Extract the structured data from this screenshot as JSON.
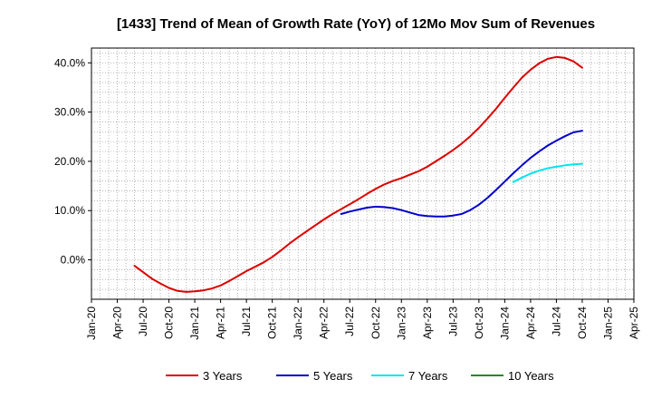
{
  "chart_data": {
    "type": "line",
    "title": "[1433]  Trend of Mean of Growth Rate (YoY) of 12Mo Mov Sum of Revenues",
    "xlabel": "",
    "ylabel": "",
    "x_ticks": [
      "Jan-20",
      "Apr-20",
      "Jul-20",
      "Oct-20",
      "Jan-21",
      "Apr-21",
      "Jul-21",
      "Oct-21",
      "Jan-22",
      "Apr-22",
      "Jul-22",
      "Oct-22",
      "Jan-23",
      "Apr-23",
      "Jul-23",
      "Oct-23",
      "Jan-24",
      "Apr-24",
      "Jul-24",
      "Oct-24",
      "Jan-25",
      "Apr-25"
    ],
    "y_ticks": [
      {
        "value": 0,
        "label": "0.0%"
      },
      {
        "value": 10,
        "label": "10.0%"
      },
      {
        "value": 20,
        "label": "20.0%"
      },
      {
        "value": 30,
        "label": "30.0%"
      },
      {
        "value": 40,
        "label": "40.0%"
      }
    ],
    "ylim": [
      -8,
      43
    ],
    "x_range_months": [
      0,
      63
    ],
    "grid": true,
    "legend_position": "bottom",
    "series": [
      {
        "name": "3 Years",
        "color": "#dd0000",
        "points": [
          [
            5,
            -1.2
          ],
          [
            6,
            -2.5
          ],
          [
            7,
            -3.8
          ],
          [
            8,
            -4.8
          ],
          [
            9,
            -5.7
          ],
          [
            10,
            -6.3
          ],
          [
            11,
            -6.5
          ],
          [
            12,
            -6.4
          ],
          [
            13,
            -6.2
          ],
          [
            14,
            -5.8
          ],
          [
            15,
            -5.2
          ],
          [
            16,
            -4.3
          ],
          [
            17,
            -3.3
          ],
          [
            18,
            -2.3
          ],
          [
            19,
            -1.4
          ],
          [
            20,
            -0.5
          ],
          [
            21,
            0.6
          ],
          [
            22,
            1.9
          ],
          [
            23,
            3.3
          ],
          [
            24,
            4.6
          ],
          [
            25,
            5.8
          ],
          [
            26,
            7.0
          ],
          [
            27,
            8.2
          ],
          [
            28,
            9.3
          ],
          [
            29,
            10.3
          ],
          [
            30,
            11.3
          ],
          [
            31,
            12.3
          ],
          [
            32,
            13.4
          ],
          [
            33,
            14.4
          ],
          [
            34,
            15.3
          ],
          [
            35,
            16.0
          ],
          [
            36,
            16.6
          ],
          [
            37,
            17.3
          ],
          [
            38,
            18.0
          ],
          [
            39,
            18.9
          ],
          [
            40,
            20.0
          ],
          [
            41,
            21.1
          ],
          [
            42,
            22.3
          ],
          [
            43,
            23.6
          ],
          [
            44,
            25.1
          ],
          [
            45,
            26.8
          ],
          [
            46,
            28.7
          ],
          [
            47,
            30.7
          ],
          [
            48,
            32.9
          ],
          [
            49,
            35.0
          ],
          [
            50,
            37.0
          ],
          [
            51,
            38.6
          ],
          [
            52,
            39.9
          ],
          [
            53,
            40.8
          ],
          [
            54,
            41.2
          ],
          [
            55,
            41.0
          ],
          [
            56,
            40.3
          ],
          [
            57,
            39.0
          ]
        ]
      },
      {
        "name": "5 Years",
        "color": "#0000cc",
        "points": [
          [
            29,
            9.3
          ],
          [
            30,
            9.8
          ],
          [
            31,
            10.2
          ],
          [
            32,
            10.6
          ],
          [
            33,
            10.8
          ],
          [
            34,
            10.7
          ],
          [
            35,
            10.5
          ],
          [
            36,
            10.1
          ],
          [
            37,
            9.6
          ],
          [
            38,
            9.1
          ],
          [
            39,
            8.9
          ],
          [
            40,
            8.8
          ],
          [
            41,
            8.8
          ],
          [
            42,
            9.0
          ],
          [
            43,
            9.3
          ],
          [
            44,
            10.1
          ],
          [
            45,
            11.2
          ],
          [
            46,
            12.6
          ],
          [
            47,
            14.2
          ],
          [
            48,
            15.9
          ],
          [
            49,
            17.6
          ],
          [
            50,
            19.2
          ],
          [
            51,
            20.7
          ],
          [
            52,
            22.0
          ],
          [
            53,
            23.2
          ],
          [
            54,
            24.2
          ],
          [
            55,
            25.1
          ],
          [
            56,
            25.9
          ],
          [
            57,
            26.2
          ]
        ]
      },
      {
        "name": "7 Years",
        "color": "#00e5ee",
        "points": [
          [
            49,
            15.8
          ],
          [
            50,
            16.7
          ],
          [
            51,
            17.5
          ],
          [
            52,
            18.1
          ],
          [
            53,
            18.6
          ],
          [
            54,
            18.9
          ],
          [
            55,
            19.2
          ],
          [
            56,
            19.4
          ],
          [
            57,
            19.5
          ]
        ]
      },
      {
        "name": "10 Years",
        "color": "#228b22",
        "points": []
      }
    ]
  }
}
